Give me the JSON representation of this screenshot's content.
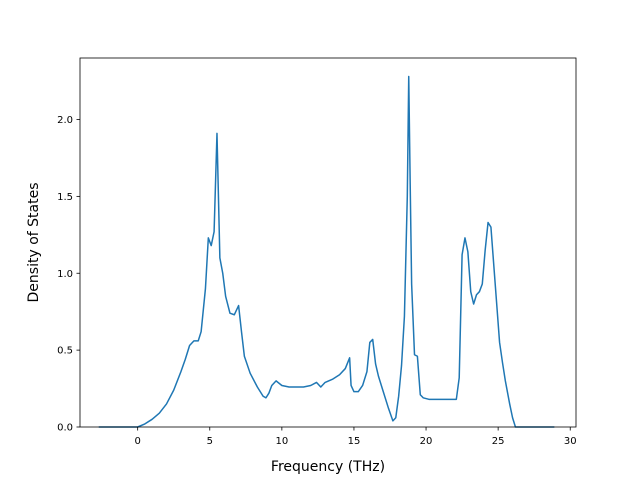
{
  "chart_data": {
    "type": "line",
    "title": "",
    "xlabel": "Frequency (THz)",
    "ylabel": "Density of States",
    "xlim": [
      -4.0,
      30.4
    ],
    "ylim": [
      0.0,
      2.4
    ],
    "x_ticks": [
      0,
      5,
      10,
      15,
      20,
      25,
      30
    ],
    "y_ticks": [
      0.0,
      0.5,
      1.0,
      1.5,
      2.0
    ],
    "x_tick_labels": [
      "0",
      "5",
      "10",
      "15",
      "20",
      "25",
      "30"
    ],
    "y_tick_labels": [
      "0.0",
      "0.5",
      "1.0",
      "1.5",
      "2.0"
    ],
    "grid": false,
    "line_color": "#1f77b4",
    "series": [
      {
        "x": [
          -2.7,
          0.0,
          0.5,
          1.0,
          1.5,
          2.0,
          2.5,
          3.0,
          3.3,
          3.6,
          3.9,
          4.2,
          4.4,
          4.7,
          4.9,
          5.1,
          5.3,
          5.5,
          5.7,
          5.9,
          6.1,
          6.4,
          6.7,
          7.0,
          7.2,
          7.4,
          7.8,
          8.3,
          8.7,
          8.9,
          9.1,
          9.3,
          9.6,
          10.0,
          10.5,
          11.0,
          11.5,
          12.0,
          12.4,
          12.7,
          13.0,
          13.5,
          14.0,
          14.4,
          14.7,
          14.8,
          15.0,
          15.3,
          15.6,
          15.9,
          16.1,
          16.3,
          16.5,
          16.7,
          17.0,
          17.4,
          17.7,
          17.9,
          18.1,
          18.3,
          18.5,
          18.7,
          18.8,
          18.9,
          19.0,
          19.2,
          19.4,
          19.6,
          19.8,
          20.2,
          21.0,
          21.5,
          22.1,
          22.3,
          22.5,
          22.7,
          22.9,
          23.1,
          23.3,
          23.5,
          23.7,
          23.9,
          24.1,
          24.3,
          24.5,
          24.7,
          24.9,
          25.1,
          25.3,
          25.5,
          25.8,
          26.0,
          26.2,
          27.0,
          28.9
        ],
        "y": [
          0.0,
          0.0,
          0.02,
          0.05,
          0.09,
          0.15,
          0.24,
          0.36,
          0.44,
          0.53,
          0.56,
          0.56,
          0.62,
          0.9,
          1.23,
          1.18,
          1.27,
          1.91,
          1.1,
          1.0,
          0.85,
          0.74,
          0.73,
          0.79,
          0.62,
          0.46,
          0.35,
          0.26,
          0.2,
          0.19,
          0.22,
          0.27,
          0.3,
          0.27,
          0.26,
          0.26,
          0.26,
          0.27,
          0.29,
          0.26,
          0.29,
          0.31,
          0.34,
          0.38,
          0.45,
          0.27,
          0.23,
          0.23,
          0.27,
          0.36,
          0.55,
          0.57,
          0.41,
          0.33,
          0.24,
          0.12,
          0.04,
          0.06,
          0.2,
          0.4,
          0.72,
          1.5,
          2.28,
          1.58,
          0.93,
          0.47,
          0.46,
          0.21,
          0.19,
          0.18,
          0.18,
          0.18,
          0.18,
          0.32,
          1.12,
          1.23,
          1.14,
          0.88,
          0.8,
          0.86,
          0.88,
          0.93,
          1.15,
          1.33,
          1.3,
          1.05,
          0.8,
          0.55,
          0.42,
          0.3,
          0.15,
          0.06,
          0.0,
          0.0,
          0.0
        ]
      }
    ]
  }
}
